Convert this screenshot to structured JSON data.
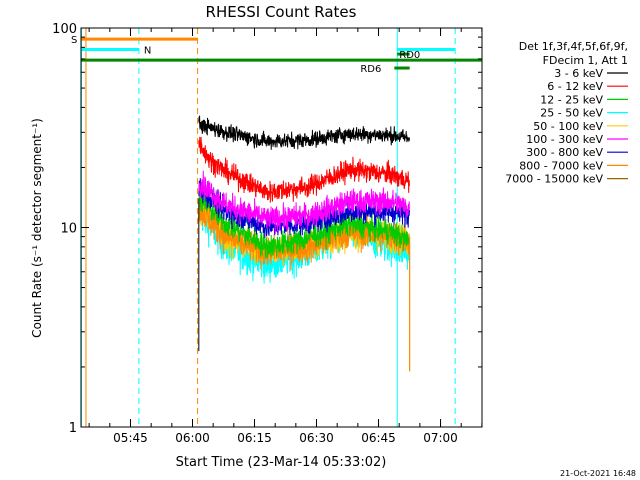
{
  "chart_data": {
    "type": "line",
    "title": "RHESSI Count Rates",
    "xlabel": "Start Time (23-Mar-14 05:33:02)",
    "ylabel": "Count Rate (s⁻¹ detector segment⁻¹)",
    "y_scale": "log",
    "ylim": [
      1,
      100
    ],
    "x_unit": "minutes after 05:33:02",
    "xlim_minutes": [
      0,
      97
    ],
    "x_ticks": [
      {
        "minute": 11.97,
        "label": "05:45"
      },
      {
        "minute": 26.97,
        "label": "06:00"
      },
      {
        "minute": 41.97,
        "label": "06:15"
      },
      {
        "minute": 56.97,
        "label": "06:30"
      },
      {
        "minute": 71.97,
        "label": "06:45"
      },
      {
        "minute": 86.97,
        "label": "07:00"
      }
    ],
    "y_ticks": [
      {
        "value": 1,
        "label": "1"
      },
      {
        "value": 10,
        "label": "10"
      },
      {
        "value": 100,
        "label": "100"
      }
    ],
    "legend_header": [
      "Det 1f,3f,4f,5f,6f,9f,",
      "FDecim 1, Att 1"
    ],
    "legend_position": "right",
    "data_start_minute": 28.5,
    "data_end_minute": 79.5,
    "series": [
      {
        "name": "3 - 6 keV",
        "color": "#000000",
        "noise": 0.045,
        "values_at": [
          [
            28.5,
            33
          ],
          [
            35,
            30
          ],
          [
            45,
            27
          ],
          [
            55,
            27.5
          ],
          [
            65,
            29.5
          ],
          [
            75,
            29
          ],
          [
            79.5,
            28
          ]
        ]
      },
      {
        "name": "6 - 12 keV",
        "color": "#ff0000",
        "noise": 0.06,
        "values_at": [
          [
            28.5,
            27
          ],
          [
            31,
            22
          ],
          [
            35,
            19
          ],
          [
            45,
            15
          ],
          [
            55,
            16
          ],
          [
            65,
            19.5
          ],
          [
            75,
            18.5
          ],
          [
            79.5,
            17
          ]
        ]
      },
      {
        "name": "12 - 25 keV",
        "color": "#00cc00",
        "noise": 0.07,
        "values_at": [
          [
            28.5,
            14
          ],
          [
            35,
            10.5
          ],
          [
            45,
            8
          ],
          [
            52,
            8.5
          ],
          [
            65,
            10.5
          ],
          [
            75,
            9.5
          ],
          [
            79.5,
            8.5
          ]
        ]
      },
      {
        "name": "25 - 50 keV",
        "color": "#00ffff",
        "noise": 0.1,
        "values_at": [
          [
            28.5,
            12
          ],
          [
            35,
            8
          ],
          [
            45,
            6.5
          ],
          [
            55,
            7.5
          ],
          [
            65,
            9.5
          ],
          [
            75,
            8
          ],
          [
            79.5,
            7.5
          ]
        ]
      },
      {
        "name": "50 - 100 keV",
        "color": "#ffcc00",
        "noise": 0.09,
        "values_at": [
          [
            28.5,
            13
          ],
          [
            35,
            9
          ],
          [
            45,
            7.5
          ],
          [
            55,
            8
          ],
          [
            65,
            9.5
          ],
          [
            75,
            9
          ],
          [
            79.5,
            8.5
          ]
        ]
      },
      {
        "name": "100 - 300 keV",
        "color": "#ff00ff",
        "noise": 0.07,
        "values_at": [
          [
            28.5,
            17
          ],
          [
            35,
            13
          ],
          [
            45,
            11
          ],
          [
            55,
            11.5
          ],
          [
            65,
            13.5
          ],
          [
            75,
            13.5
          ],
          [
            79.5,
            12.5
          ]
        ]
      },
      {
        "name": "300 - 800 keV",
        "color": "#0000cc",
        "noise": 0.065,
        "values_at": [
          [
            28.5,
            16
          ],
          [
            35,
            12
          ],
          [
            45,
            10
          ],
          [
            55,
            10.5
          ],
          [
            65,
            12
          ],
          [
            75,
            12
          ],
          [
            79.5,
            11.5
          ]
        ]
      },
      {
        "name": "800 - 7000 keV",
        "color": "#ff8800",
        "noise": 0.09,
        "values_at": [
          [
            28.5,
            12.5
          ],
          [
            35,
            9
          ],
          [
            45,
            7.5
          ],
          [
            55,
            8
          ],
          [
            65,
            9.5
          ],
          [
            75,
            9
          ],
          [
            79.5,
            8.5
          ]
        ]
      },
      {
        "name": "7000 - 15000 keV",
        "color": "#996600",
        "noise": 0.0,
        "values_at": []
      }
    ],
    "annotations": {
      "vertical_lines": [
        {
          "minute": 0.1,
          "color": "#00ffff",
          "style": "solid"
        },
        {
          "minute": 1.2,
          "color": "#ff8800",
          "style": "solid"
        },
        {
          "minute": 14.0,
          "color": "#00ffff",
          "style": "dashed"
        },
        {
          "minute": 28.2,
          "color": "#ff8800",
          "style": "dashed"
        },
        {
          "minute": 76.5,
          "color": "#00ffff",
          "style": "solid"
        },
        {
          "minute": 90.5,
          "color": "#00ffff",
          "style": "dashed"
        }
      ],
      "bars": [
        {
          "label": "S",
          "color": "#ff8800",
          "y": 88,
          "x_start": 0,
          "x_end": 28.2
        },
        {
          "label": "N",
          "color": "#00ffff",
          "y": 78,
          "x_start": 0,
          "x_end": 14.0
        },
        {
          "label": "",
          "color": "#00ffff",
          "y": 78,
          "x_start": 76.5,
          "x_end": 90.5
        },
        {
          "label": "",
          "color": "#008800",
          "y": 69,
          "x_start": 0,
          "x_end": 97
        },
        {
          "label": "RD0",
          "color": "#008800",
          "y": 74,
          "x_start": 76.5,
          "x_end": 79.5
        },
        {
          "label": "RD6",
          "color": "#008800",
          "y": 63,
          "x_start": 75.8,
          "x_end": 79.5
        }
      ]
    },
    "footer_timestamp": "21-Oct-2021 16:48"
  }
}
